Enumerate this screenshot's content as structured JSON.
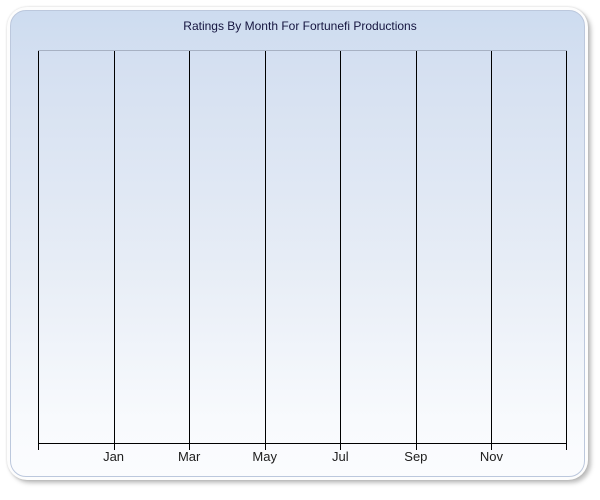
{
  "card": {
    "background_gradient_top": "#cddcf0",
    "background_gradient_bottom": "#fbfcfe",
    "border_color": "#fdfdfd",
    "inner_edge_color": "#bcc8dd"
  },
  "chart_data": {
    "type": "line",
    "title": "Ratings By Month For Fortunefi Productions",
    "title_color": "#15153f",
    "x_tick_labels": [
      "Jan",
      "Mar",
      "May",
      "Jul",
      "Sep",
      "Nov"
    ],
    "y_tick_labels": [],
    "series": [],
    "grid": "vertical-only",
    "x_gridline_count": 8,
    "legend": "none",
    "gridline_color": "#000000",
    "axis_color": "#000000",
    "plot_top_border_color": "#a7b1c3",
    "tick_label_color": "#202020"
  }
}
